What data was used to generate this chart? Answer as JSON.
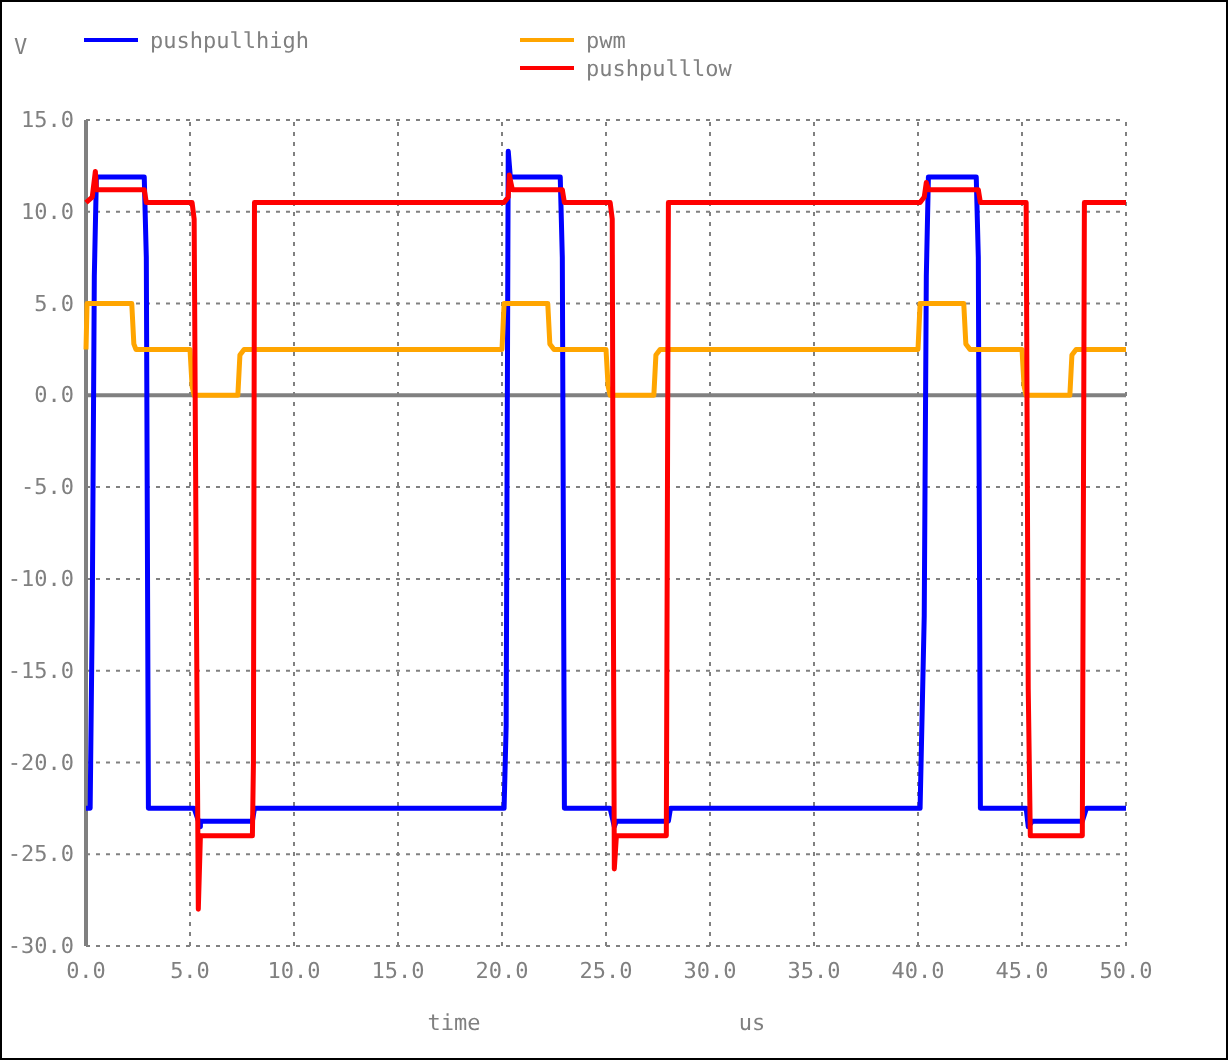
{
  "chart_data": {
    "type": "line",
    "ylabel": "V",
    "xlabel": "time",
    "annotations": [
      "us"
    ],
    "xlim": [
      0,
      50
    ],
    "xticks": [
      {
        "value": 0,
        "label": "0.0"
      },
      {
        "value": 5,
        "label": "5.0"
      },
      {
        "value": 10,
        "label": "10.0"
      },
      {
        "value": 15,
        "label": "15.0"
      },
      {
        "value": 20,
        "label": "20.0"
      },
      {
        "value": 25,
        "label": "25.0"
      },
      {
        "value": 30,
        "label": "30.0"
      },
      {
        "value": 35,
        "label": "35.0"
      },
      {
        "value": 40,
        "label": "40.0"
      },
      {
        "value": 45,
        "label": "45.0"
      },
      {
        "value": 50,
        "label": "50.0"
      }
    ],
    "ylim": [
      -30,
      15
    ],
    "yticks": [
      {
        "value": -30,
        "label": "-30.0"
      },
      {
        "value": -25,
        "label": "-25.0"
      },
      {
        "value": -20,
        "label": "-20.0"
      },
      {
        "value": -15,
        "label": "-15.0"
      },
      {
        "value": -10,
        "label": "-10.0"
      },
      {
        "value": -5,
        "label": "-5.0"
      },
      {
        "value": 0,
        "label": "0.0"
      },
      {
        "value": 5,
        "label": "5.0"
      },
      {
        "value": 10,
        "label": "10.0"
      },
      {
        "value": 15,
        "label": "15.0"
      }
    ],
    "grid": true,
    "legend": "top",
    "line_style": "solid",
    "ref_lines": [
      {
        "axis": "y",
        "value": 0,
        "color": "#808080"
      }
    ],
    "series": [
      {
        "name": "pushpullhigh",
        "color": "#0000ff",
        "x": [
          0,
          0.2,
          0.3,
          0.4,
          0.5,
          2.8,
          2.9,
          3.0,
          5.2,
          5.5,
          5.5,
          8.0,
          8.1,
          20.1,
          20.2,
          20.3,
          20.4,
          22.8,
          22.9,
          23.0,
          25.2,
          25.4,
          25.5,
          28.0,
          28.1,
          40.1,
          40.3,
          40.4,
          40.5,
          42.8,
          42.9,
          43.0,
          45.2,
          45.3,
          45.5,
          47.9,
          48.1,
          50
        ],
        "values": [
          -22.5,
          -22.5,
          -12.0,
          6.5,
          11.9,
          11.9,
          7.5,
          -22.5,
          -22.5,
          -23.5,
          -23.2,
          -23.2,
          -22.5,
          -22.5,
          -18.0,
          13.3,
          11.9,
          11.9,
          7.5,
          -22.5,
          -22.5,
          -23.5,
          -23.2,
          -23.2,
          -22.5,
          -22.5,
          -12.0,
          6.5,
          11.9,
          11.9,
          7.5,
          -22.5,
          -22.5,
          -23.5,
          -23.2,
          -23.2,
          -22.5,
          -22.5
        ]
      },
      {
        "name": "pwm",
        "color": "#ffa500",
        "x": [
          0,
          0.05,
          0.2,
          2.2,
          2.3,
          2.4,
          5.0,
          5.1,
          5.2,
          7.3,
          7.4,
          7.6,
          20.0,
          20.1,
          20.2,
          22.2,
          22.3,
          22.5,
          25.0,
          25.1,
          25.2,
          27.3,
          27.4,
          27.6,
          40.0,
          40.1,
          40.2,
          42.2,
          42.3,
          42.5,
          45.0,
          45.1,
          45.2,
          47.3,
          47.4,
          47.6,
          50
        ],
        "values": [
          2.5,
          5.0,
          5.0,
          5.0,
          2.8,
          2.5,
          2.5,
          0.5,
          0,
          0,
          2.2,
          2.5,
          2.5,
          5.0,
          5.0,
          5.0,
          2.8,
          2.5,
          2.5,
          0.5,
          0,
          0,
          2.2,
          2.5,
          2.5,
          5.0,
          5.0,
          5.0,
          2.8,
          2.5,
          2.5,
          0.5,
          0,
          0,
          2.2,
          2.5,
          2.5
        ]
      },
      {
        "name": "pushpulllow",
        "color": "#ff0000",
        "x": [
          0,
          0.3,
          0.45,
          0.5,
          0.6,
          2.8,
          2.9,
          5.1,
          5.2,
          5.3,
          5.4,
          5.5,
          5.6,
          8.0,
          8.05,
          8.1,
          20.1,
          20.3,
          20.35,
          20.5,
          22.9,
          23.0,
          25.2,
          25.3,
          25.35,
          25.4,
          25.5,
          27.9,
          28.0,
          40.1,
          40.3,
          40.4,
          40.5,
          42.9,
          43.0,
          45.2,
          45.3,
          45.4,
          45.5,
          47.9,
          48.0,
          50
        ],
        "values": [
          10.5,
          10.8,
          12.2,
          11.2,
          11.2,
          11.2,
          10.5,
          10.5,
          9.6,
          -10.0,
          -28.0,
          -24.0,
          -24.0,
          -24.0,
          -20.0,
          10.5,
          10.5,
          10.8,
          12.0,
          11.2,
          11.2,
          10.5,
          10.5,
          9.6,
          -10.0,
          -25.8,
          -24.0,
          -24.0,
          10.5,
          10.5,
          10.8,
          11.6,
          11.2,
          11.2,
          10.5,
          10.5,
          -16.0,
          -24.0,
          -24.0,
          -24.0,
          10.5,
          10.5
        ]
      }
    ]
  }
}
